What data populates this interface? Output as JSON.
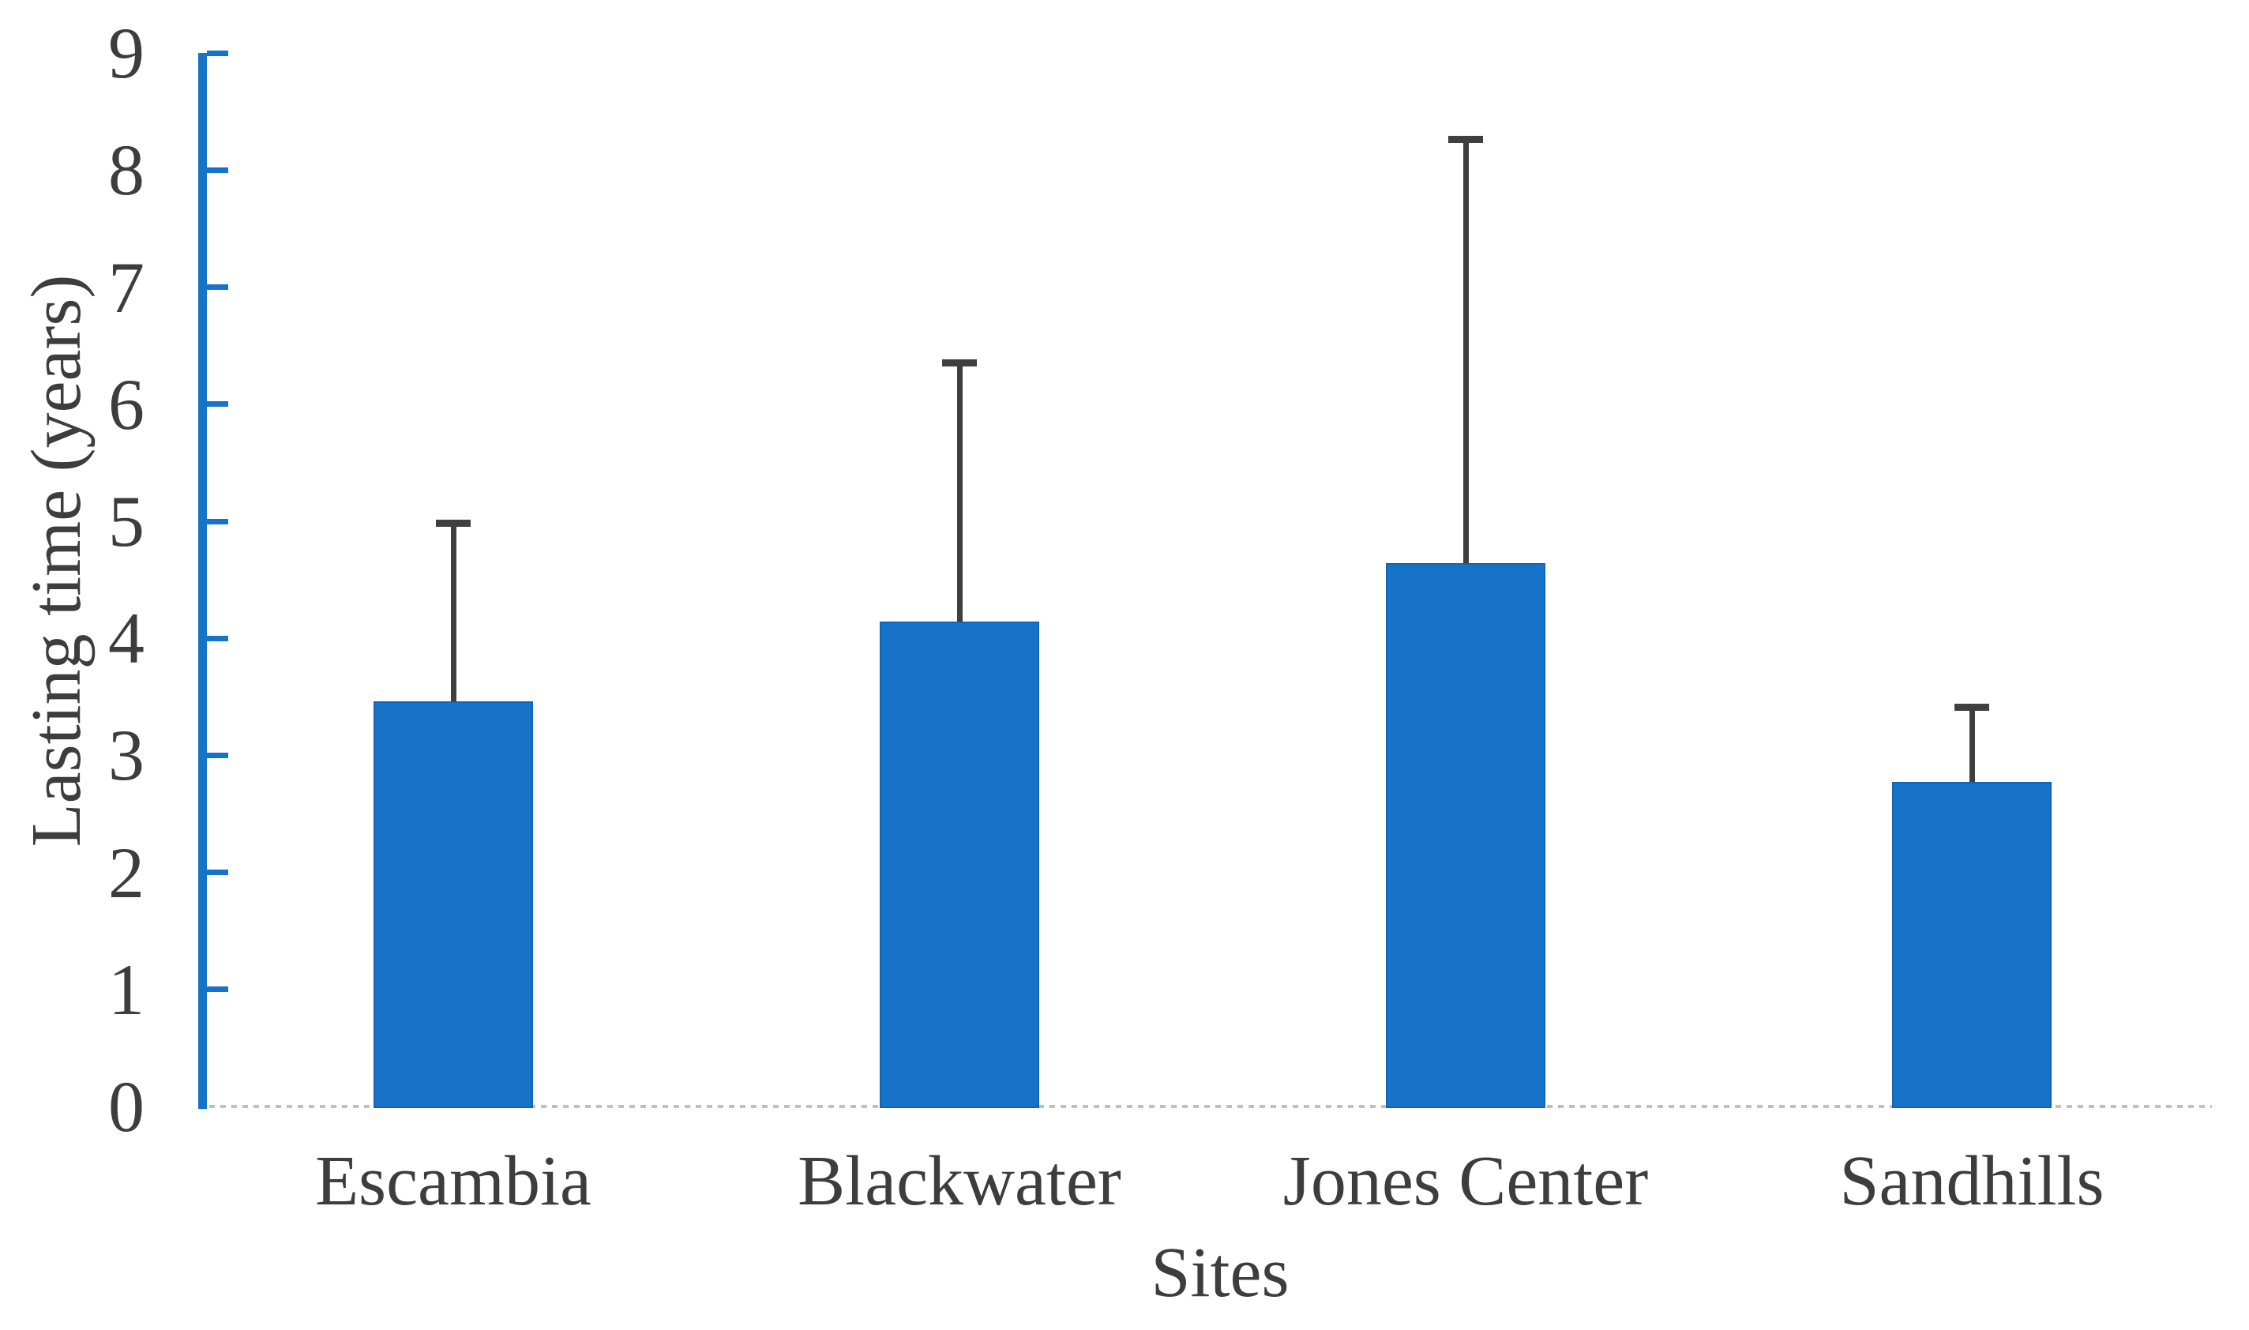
{
  "chart_data": {
    "type": "bar",
    "title": "",
    "xlabel": "Sites",
    "ylabel": "Lasting time (years)",
    "categories": [
      "Escambia",
      "Blackwater",
      "Jones Center",
      "Sandhills"
    ],
    "series": [
      {
        "name": "Lasting time",
        "values": [
          3.46,
          4.14,
          4.64,
          2.77
        ],
        "error_plus": [
          1.52,
          2.21,
          3.62,
          0.64
        ],
        "error_top": [
          4.98,
          6.35,
          8.26,
          3.41
        ]
      }
    ],
    "ylim": [
      0,
      9
    ],
    "yticks": [
      0,
      1,
      2,
      3,
      4,
      5,
      6,
      7,
      8,
      9
    ],
    "grid": false,
    "legend_position": "none",
    "error_bars": "upper-only",
    "colors": {
      "bar": "#1673C9",
      "bar_border": "#1265B5",
      "axis": "#1673C9",
      "error_bar": "#3F3F3F",
      "text": "#3D3D3D",
      "baseline": "#BFBFBF"
    }
  }
}
